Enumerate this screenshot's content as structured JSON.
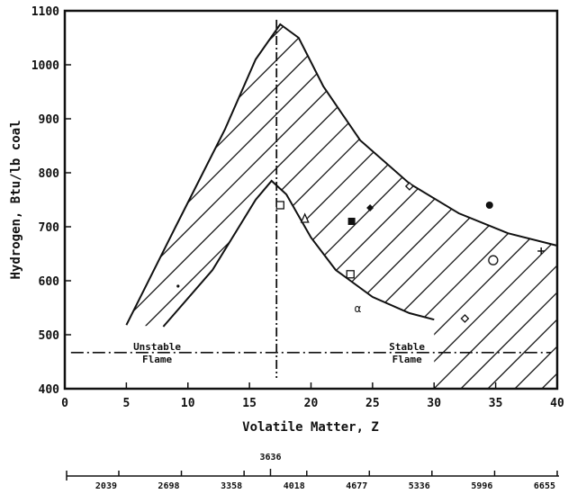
{
  "chart_data": {
    "type": "scatter",
    "title": "",
    "xlabel": "Volatile Matter, Z",
    "ylabel": "Hydrogen, Btu/lb coal",
    "xlim": [
      0,
      40
    ],
    "ylim": [
      400,
      1100
    ],
    "x_ticks": [
      0,
      5,
      10,
      15,
      20,
      25,
      30,
      35,
      40
    ],
    "y_ticks": [
      400,
      500,
      600,
      700,
      800,
      900,
      1000,
      1100
    ],
    "points": [
      {
        "x": 9.2,
        "y": 590,
        "marker": "dot"
      },
      {
        "x": 17.5,
        "y": 740,
        "marker": "square"
      },
      {
        "x": 19.5,
        "y": 715,
        "marker": "triangle"
      },
      {
        "x": 23.3,
        "y": 710,
        "marker": "filled-square"
      },
      {
        "x": 24.8,
        "y": 735,
        "marker": "filled-diamond"
      },
      {
        "x": 28.0,
        "y": 775,
        "marker": "diamond"
      },
      {
        "x": 34.5,
        "y": 740,
        "marker": "filled-circle"
      },
      {
        "x": 23.2,
        "y": 612,
        "marker": "square"
      },
      {
        "x": 23.8,
        "y": 548,
        "marker": "alpha"
      },
      {
        "x": 34.8,
        "y": 638,
        "marker": "circle"
      },
      {
        "x": 32.5,
        "y": 530,
        "marker": "diamond"
      },
      {
        "x": 38.7,
        "y": 655,
        "marker": "plus"
      }
    ],
    "upper_boundary": [
      {
        "x": 5.0,
        "y": 518
      },
      {
        "x": 9.0,
        "y": 700
      },
      {
        "x": 13.0,
        "y": 880
      },
      {
        "x": 15.5,
        "y": 1010
      },
      {
        "x": 17.5,
        "y": 1075
      },
      {
        "x": 19.0,
        "y": 1050
      },
      {
        "x": 21.0,
        "y": 960
      },
      {
        "x": 24.0,
        "y": 860
      },
      {
        "x": 28.0,
        "y": 780
      },
      {
        "x": 32.0,
        "y": 725
      },
      {
        "x": 36.0,
        "y": 688
      },
      {
        "x": 40.0,
        "y": 665
      }
    ],
    "lower_boundary": [
      {
        "x": 8.0,
        "y": 515
      },
      {
        "x": 12.0,
        "y": 620
      },
      {
        "x": 15.5,
        "y": 750
      },
      {
        "x": 16.8,
        "y": 785
      },
      {
        "x": 18.0,
        "y": 760
      },
      {
        "x": 20.0,
        "y": 680
      },
      {
        "x": 22.0,
        "y": 620
      },
      {
        "x": 25.0,
        "y": 570
      },
      {
        "x": 28.0,
        "y": 540
      },
      {
        "x": 30.0,
        "y": 528
      }
    ],
    "divider_x": 17.2,
    "regions": [
      {
        "label_line1": "Unstable",
        "label_line2": "Flame",
        "x": 7.5,
        "y": 467
      },
      {
        "label_line1": "Stable",
        "label_line2": "Flame",
        "x": 27.8,
        "y": 467
      }
    ],
    "secondary_axis": {
      "ticks": [
        2039,
        2698,
        3358,
        3636,
        4018,
        4677,
        5336,
        5996,
        6655
      ],
      "highlight": 3636
    }
  }
}
